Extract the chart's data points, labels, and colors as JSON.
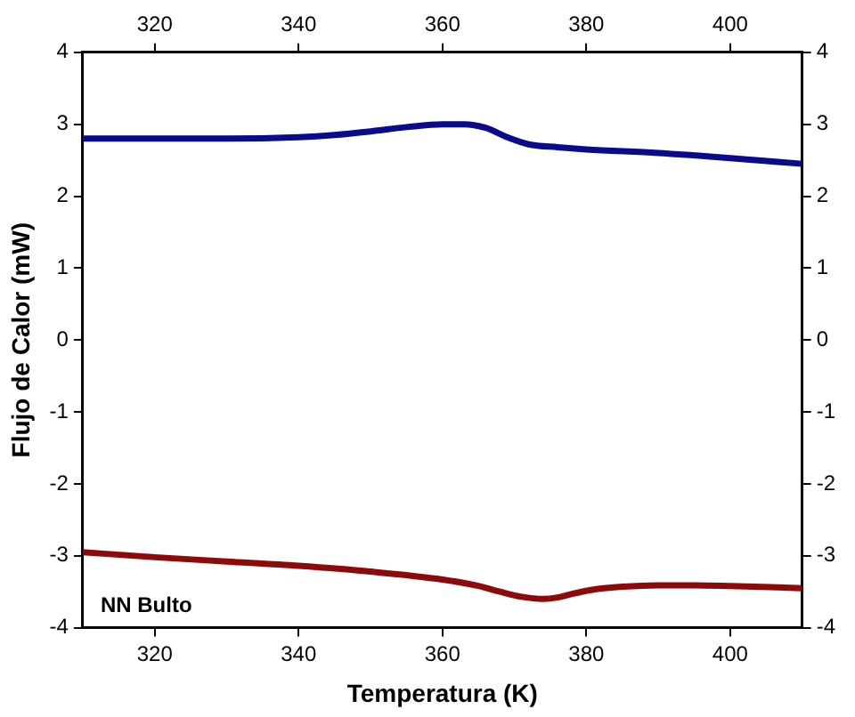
{
  "chart_data": {
    "type": "line",
    "xlabel": "Temperatura (K)",
    "ylabel": "Flujo de Calor (mW)",
    "xlim": [
      310,
      410
    ],
    "xticks": [
      320,
      340,
      360,
      380,
      400
    ],
    "x2lim": [
      310,
      410
    ],
    "x2ticks": [
      320,
      340,
      360,
      380,
      400
    ],
    "ylim": [
      -4,
      4
    ],
    "yticks": [
      -4,
      -3,
      -2,
      -1,
      0,
      1,
      2,
      3,
      4
    ],
    "y2lim": [
      -4,
      4
    ],
    "y2ticks": [
      -4,
      -3,
      -2,
      -1,
      0,
      1,
      2,
      3,
      4
    ],
    "grid": false,
    "legend": false,
    "marker": "none",
    "line_style": "solid",
    "annotations": [
      "NN Bulto"
    ],
    "series": [
      {
        "color": "#0a0a8c",
        "x": [
          310,
          320,
          330,
          340,
          345,
          350,
          355,
          360,
          363,
          366,
          369,
          372,
          376,
          380,
          390,
          400,
          410
        ],
        "values": [
          2.8,
          2.8,
          2.8,
          2.82,
          2.85,
          2.9,
          2.96,
          3.0,
          3.0,
          2.95,
          2.82,
          2.72,
          2.68,
          2.65,
          2.6,
          2.53,
          2.45
        ]
      },
      {
        "color": "#8c0a0a",
        "x": [
          310,
          320,
          330,
          340,
          350,
          360,
          365,
          368,
          371,
          374,
          376,
          378,
          381,
          385,
          390,
          395,
          400,
          410
        ],
        "values": [
          -2.95,
          -3.02,
          -3.08,
          -3.14,
          -3.22,
          -3.33,
          -3.42,
          -3.5,
          -3.57,
          -3.6,
          -3.58,
          -3.53,
          -3.47,
          -3.43,
          -3.41,
          -3.41,
          -3.42,
          -3.45
        ]
      }
    ]
  }
}
